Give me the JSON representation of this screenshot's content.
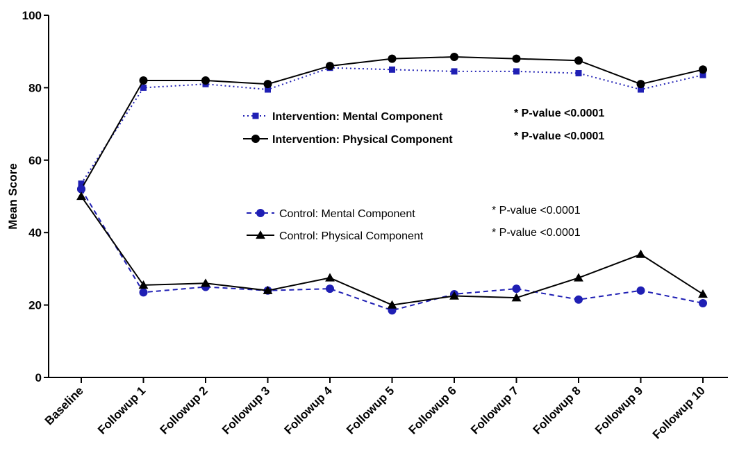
{
  "chart_data": {
    "type": "line",
    "ylabel": "Mean Score",
    "xlabel": "",
    "ylim": [
      0,
      100
    ],
    "yticks": [
      0,
      20,
      40,
      60,
      80,
      100
    ],
    "categories": [
      "Baseline",
      "Followup 1",
      "Followup 2",
      "Followup 3",
      "Followup 4",
      "Followup 5",
      "Followup 6",
      "Followup 7",
      "Followup 8",
      "Followup 9",
      "Followup 10"
    ],
    "series": [
      {
        "name": "Intervention: Mental Component",
        "note": "* P-value <0.0001",
        "color": "#1f1fb4",
        "marker": "square",
        "line": "dotted",
        "values": [
          53.5,
          80,
          81,
          79.5,
          85.5,
          85,
          84.5,
          84.5,
          84,
          79.5,
          83.5
        ]
      },
      {
        "name": "Intervention: Physical Component",
        "note": "* P-value <0.0001",
        "color": "#000000",
        "marker": "circle",
        "line": "solid",
        "values": [
          52,
          82,
          82,
          81,
          86,
          88,
          88.5,
          88,
          87.5,
          81,
          85
        ]
      },
      {
        "name": "Control: Mental Component",
        "note": "* P-value <0.0001",
        "color": "#1f1fb4",
        "marker": "circle",
        "line": "dashed",
        "values": [
          52,
          23.5,
          25,
          24,
          24.5,
          18.5,
          23,
          24.5,
          21.5,
          24,
          20.5
        ]
      },
      {
        "name": "Control: Physical Component",
        "note": "* P-value <0.0001",
        "color": "#000000",
        "marker": "triangle",
        "line": "solid",
        "values": [
          50,
          25.5,
          26,
          24,
          27.5,
          20,
          22.5,
          22,
          27.5,
          34,
          23
        ]
      }
    ],
    "legend": {
      "intervention_position": "center-top",
      "control_position": "center"
    }
  }
}
